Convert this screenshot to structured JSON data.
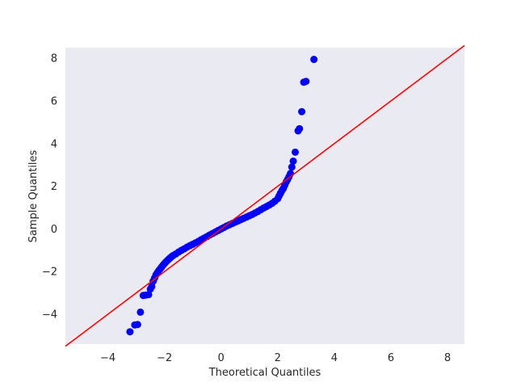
{
  "chart_data": {
    "type": "scatter",
    "xlabel": "Theoretical Quantiles",
    "ylabel": "Sample Quantiles",
    "xlim": [
      -5.5,
      8.6
    ],
    "ylim": [
      -5.4,
      8.5
    ],
    "xticks": [
      -4,
      -2,
      0,
      2,
      4,
      6,
      8
    ],
    "yticks": [
      -4,
      -2,
      0,
      2,
      4,
      6,
      8
    ],
    "xtick_labels": [
      "−4",
      "−2",
      "0",
      "2",
      "4",
      "6",
      "8"
    ],
    "ytick_labels": [
      "−4",
      "−2",
      "0",
      "2",
      "4",
      "6",
      "8"
    ],
    "grid": false,
    "background_color": "#eaeaf2",
    "point_color": "#0000ff",
    "line_color": "#ff0000",
    "reference_line": {
      "slope": 1,
      "intercept": 0
    },
    "points": [
      [
        -3.22,
        -4.82
      ],
      [
        -3.05,
        -4.5
      ],
      [
        -2.95,
        -4.48
      ],
      [
        -2.85,
        -3.9
      ],
      [
        -2.75,
        -3.12
      ],
      [
        -2.66,
        -3.1
      ],
      [
        -2.56,
        -3.08
      ],
      [
        -2.5,
        -2.82
      ],
      [
        -2.45,
        -2.7
      ],
      [
        -2.4,
        -2.45
      ],
      [
        -2.35,
        -2.3
      ],
      [
        -2.3,
        -2.15
      ],
      [
        -2.25,
        -2.05
      ],
      [
        -2.2,
        -1.95
      ],
      [
        -2.15,
        -1.87
      ],
      [
        -2.1,
        -1.78
      ],
      [
        -2.05,
        -1.7
      ],
      [
        -2.0,
        -1.62
      ],
      [
        -1.95,
        -1.55
      ],
      [
        -1.9,
        -1.48
      ],
      [
        -1.85,
        -1.42
      ],
      [
        -1.8,
        -1.36
      ],
      [
        -1.75,
        -1.3
      ],
      [
        -1.7,
        -1.25
      ],
      [
        -1.6,
        -1.17
      ],
      [
        -1.5,
        -1.08
      ],
      [
        -1.4,
        -1.0
      ],
      [
        -1.3,
        -0.93
      ],
      [
        -1.2,
        -0.85
      ],
      [
        -1.1,
        -0.78
      ],
      [
        -1.0,
        -0.72
      ],
      [
        -0.9,
        -0.65
      ],
      [
        -0.8,
        -0.58
      ],
      [
        -0.7,
        -0.5
      ],
      [
        -0.6,
        -0.43
      ],
      [
        -0.5,
        -0.36
      ],
      [
        -0.4,
        -0.28
      ],
      [
        -0.3,
        -0.21
      ],
      [
        -0.2,
        -0.14
      ],
      [
        -0.1,
        -0.07
      ],
      [
        0.0,
        0.0
      ],
      [
        0.1,
        0.07
      ],
      [
        0.2,
        0.14
      ],
      [
        0.3,
        0.2
      ],
      [
        0.4,
        0.26
      ],
      [
        0.5,
        0.32
      ],
      [
        0.6,
        0.38
      ],
      [
        0.7,
        0.44
      ],
      [
        0.8,
        0.5
      ],
      [
        0.9,
        0.56
      ],
      [
        1.0,
        0.62
      ],
      [
        1.1,
        0.68
      ],
      [
        1.2,
        0.75
      ],
      [
        1.3,
        0.82
      ],
      [
        1.4,
        0.9
      ],
      [
        1.5,
        0.98
      ],
      [
        1.6,
        1.05
      ],
      [
        1.7,
        1.12
      ],
      [
        1.8,
        1.2
      ],
      [
        1.9,
        1.3
      ],
      [
        2.0,
        1.42
      ],
      [
        2.05,
        1.55
      ],
      [
        2.1,
        1.68
      ],
      [
        2.15,
        1.8
      ],
      [
        2.2,
        1.9
      ],
      [
        2.25,
        2.05
      ],
      [
        2.3,
        2.2
      ],
      [
        2.35,
        2.32
      ],
      [
        2.4,
        2.45
      ],
      [
        2.45,
        2.6
      ],
      [
        2.5,
        2.9
      ],
      [
        2.55,
        3.18
      ],
      [
        2.62,
        3.6
      ],
      [
        2.72,
        4.6
      ],
      [
        2.77,
        4.7
      ],
      [
        2.85,
        5.5
      ],
      [
        2.92,
        6.88
      ],
      [
        3.0,
        6.92
      ],
      [
        3.28,
        7.95
      ]
    ]
  }
}
